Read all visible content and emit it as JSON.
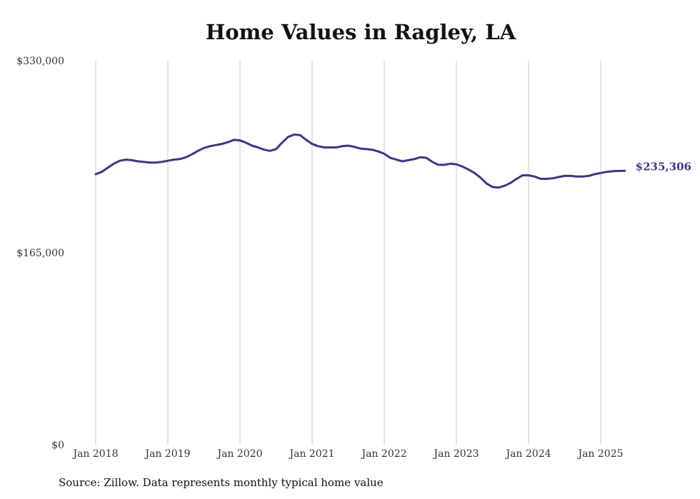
{
  "chart_data": {
    "type": "line",
    "title": "Home Values in Ragley, LA",
    "source": "Source: Zillow. Data represents monthly typical home value",
    "y_ticks": [
      {
        "value": 330000,
        "label": "$330,000"
      },
      {
        "value": 165000,
        "label": "$165,000"
      },
      {
        "value": 0,
        "label": "$0"
      }
    ],
    "ylim": [
      0,
      330000
    ],
    "x_ticks": [
      "Jan 2018",
      "Jan 2019",
      "Jan 2020",
      "Jan 2021",
      "Jan 2022",
      "Jan 2023",
      "Jan 2024",
      "Jan 2025"
    ],
    "x_start": "2018-01",
    "x_end": "2025-05",
    "grid": "vertical",
    "line_color": "#3f3494",
    "end_label": "$235,306",
    "series": [
      {
        "name": "",
        "x": [
          "2018-01",
          "2018-02",
          "2018-03",
          "2018-04",
          "2018-05",
          "2018-06",
          "2018-07",
          "2018-08",
          "2018-09",
          "2018-10",
          "2018-11",
          "2018-12",
          "2019-01",
          "2019-02",
          "2019-03",
          "2019-04",
          "2019-05",
          "2019-06",
          "2019-07",
          "2019-08",
          "2019-09",
          "2019-10",
          "2019-11",
          "2019-12",
          "2020-01",
          "2020-02",
          "2020-03",
          "2020-04",
          "2020-05",
          "2020-06",
          "2020-07",
          "2020-08",
          "2020-09",
          "2020-10",
          "2020-11",
          "2020-12",
          "2021-01",
          "2021-02",
          "2021-03",
          "2021-04",
          "2021-05",
          "2021-06",
          "2021-07",
          "2021-08",
          "2021-09",
          "2021-10",
          "2021-11",
          "2021-12",
          "2022-01",
          "2022-02",
          "2022-03",
          "2022-04",
          "2022-05",
          "2022-06",
          "2022-07",
          "2022-08",
          "2022-09",
          "2022-10",
          "2022-11",
          "2022-12",
          "2023-01",
          "2023-02",
          "2023-03",
          "2023-04",
          "2023-05",
          "2023-06",
          "2023-07",
          "2023-08",
          "2023-09",
          "2023-10",
          "2023-11",
          "2023-12",
          "2024-01",
          "2024-02",
          "2024-03",
          "2024-04",
          "2024-05",
          "2024-06",
          "2024-07",
          "2024-08",
          "2024-09",
          "2024-10",
          "2024-11",
          "2024-12",
          "2025-01",
          "2025-02",
          "2025-03",
          "2025-04",
          "2025-05"
        ],
        "values": [
          232500,
          234500,
          238000,
          241500,
          244000,
          245000,
          244500,
          243500,
          243000,
          242500,
          242500,
          243000,
          244000,
          245000,
          245500,
          247000,
          249500,
          252500,
          255000,
          256500,
          257500,
          258500,
          260000,
          262000,
          261500,
          259500,
          257000,
          255500,
          253500,
          252500,
          254000,
          259500,
          264500,
          266500,
          266000,
          262000,
          258500,
          256500,
          255500,
          255500,
          255500,
          256500,
          257000,
          256000,
          254500,
          254000,
          253500,
          252000,
          250000,
          246500,
          245000,
          243500,
          244500,
          245500,
          247000,
          246500,
          243000,
          240500,
          240500,
          241500,
          241000,
          239000,
          236500,
          233500,
          229500,
          224500,
          221500,
          221000,
          222500,
          225000,
          228500,
          231500,
          231500,
          230500,
          228500,
          228500,
          229000,
          230000,
          231000,
          231000,
          230500,
          230500,
          231000,
          232500,
          233500,
          234500,
          235000,
          235306,
          235306
        ]
      }
    ]
  }
}
